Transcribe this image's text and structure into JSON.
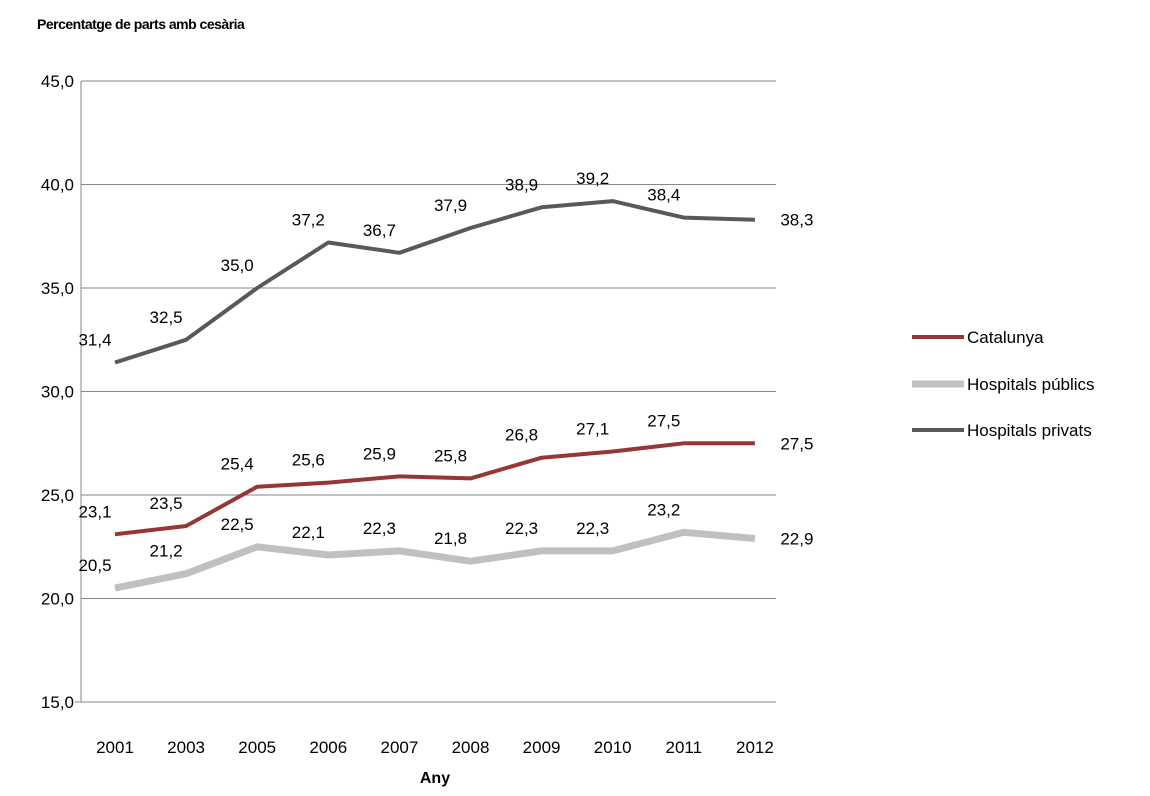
{
  "chart_data": {
    "type": "line",
    "title": "",
    "ylabel": "Percentatge de parts amb cesària",
    "xlabel": "Any",
    "categories": [
      "2001",
      "2003",
      "2005",
      "2006",
      "2007",
      "2008",
      "2009",
      "2010",
      "2011",
      "2012"
    ],
    "ylim": [
      15,
      45
    ],
    "yticks": [
      15,
      20,
      25,
      30,
      35,
      40,
      45
    ],
    "ytick_labels": [
      "15,0",
      "20,0",
      "25,0",
      "30,0",
      "35,0",
      "40,0",
      "45,0"
    ],
    "grid": true,
    "legend_position": "right",
    "series": [
      {
        "name": "Catalunya",
        "color": "#953735",
        "values": [
          23.1,
          23.5,
          25.4,
          25.6,
          25.9,
          25.8,
          26.8,
          27.1,
          27.5,
          27.5
        ],
        "labels": [
          "23,1",
          "23,5",
          "25,4",
          "25,6",
          "25,9",
          "25,8",
          "26,8",
          "27,1",
          "27,5",
          "27,5"
        ]
      },
      {
        "name": "Hospitals públics",
        "color": "#C0C0C0",
        "values": [
          20.5,
          21.2,
          22.5,
          22.1,
          22.3,
          21.8,
          22.3,
          22.3,
          23.2,
          22.9
        ],
        "labels": [
          "20,5",
          "21,2",
          "22,5",
          "22,1",
          "22,3",
          "21,8",
          "22,3",
          "22,3",
          "23,2",
          "22,9"
        ]
      },
      {
        "name": "Hospitals privats",
        "color": "#595959",
        "values": [
          31.4,
          32.5,
          35.0,
          37.2,
          36.7,
          37.9,
          38.9,
          39.2,
          38.4,
          38.3
        ],
        "labels": [
          "31,4",
          "32,5",
          "35,0",
          "37,2",
          "36,7",
          "37,9",
          "38,9",
          "39,2",
          "38,4",
          "38,3"
        ]
      }
    ]
  }
}
